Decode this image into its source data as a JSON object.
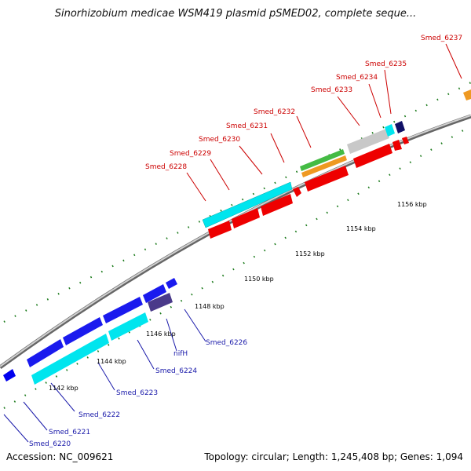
{
  "title": "Sinorhizobium medicae WSM419 plasmid pSMED02, complete seque...",
  "footer": {
    "accession": "Accession: NC_009621",
    "summary": "Topology: circular; Length: 1,245,408 bp; Genes: 1,094"
  },
  "colors": {
    "forward_label": "#cc0000",
    "reverse_label": "#1a1aaa",
    "tick": "#1a7a1a",
    "backbone": "#888888"
  },
  "kbp_labels": [
    "1142 kbp",
    "1144 kbp",
    "1146 kbp",
    "1148 kbp",
    "1150 kbp",
    "1152 kbp",
    "1154 kbp",
    "1156 kbp"
  ],
  "forward_gene_labels": [
    "Smed_6228",
    "Smed_6229",
    "Smed_6230",
    "Smed_6231",
    "Smed_6232",
    "Smed_6233",
    "Smed_6234",
    "Smed_6235",
    "Smed_6237"
  ],
  "reverse_gene_labels": [
    "Smed_6220",
    "Smed_6221",
    "Smed_6222",
    "Smed_6223",
    "Smed_6224",
    "nifH",
    "Smed_6226"
  ]
}
